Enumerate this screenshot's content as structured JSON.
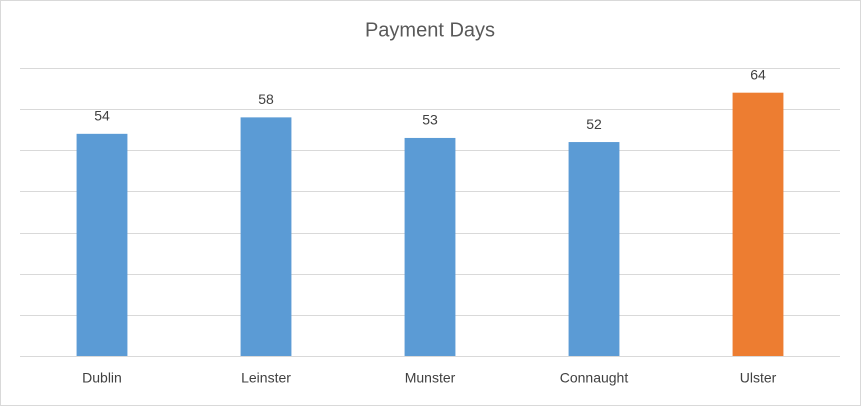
{
  "chart_data": {
    "type": "bar",
    "title": "Payment Days",
    "categories": [
      "Dublin",
      "Leinster",
      "Munster",
      "Connaught",
      "Ulster"
    ],
    "values": [
      54,
      58,
      53,
      52,
      64
    ],
    "colors": [
      "#5b9bd5",
      "#5b9bd5",
      "#5b9bd5",
      "#5b9bd5",
      "#ed7d31"
    ],
    "ylim": [
      0,
      70
    ],
    "yticks": [
      0,
      10,
      20,
      30,
      40,
      50,
      60,
      70
    ],
    "grid": true
  }
}
